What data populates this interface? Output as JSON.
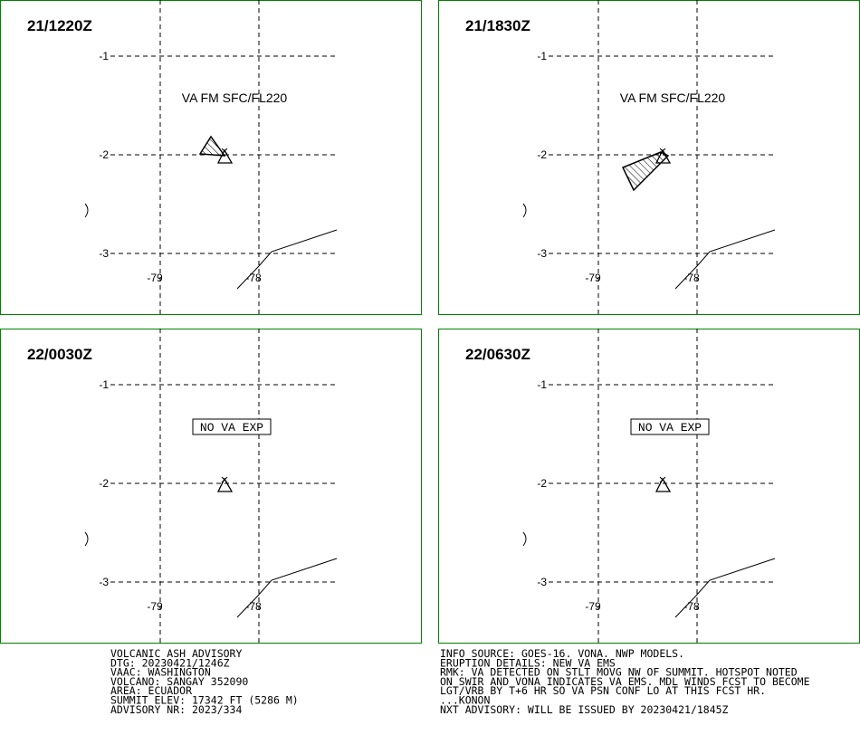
{
  "panels": [
    {
      "time": "21/1220Z",
      "annotation": "VA FM SFC/FL220"
    },
    {
      "time": "21/1830Z",
      "annotation": "VA FM SFC/FL220"
    },
    {
      "time": "22/0030Z",
      "annotation": "NO VA EXP"
    },
    {
      "time": "22/0630Z",
      "annotation": "NO VA EXP"
    }
  ],
  "lat_labels": [
    "-1",
    "-2",
    "-3"
  ],
  "lon_labels": [
    "-79",
    "-78"
  ],
  "footer": {
    "left": [
      "VOLCANIC ASH ADVISORY",
      "DTG: 20230421/1246Z",
      "VAAC: WASHINGTON",
      "VOLCANO: SANGAY 352090",
      "AREA: ECUADOR",
      "SUMMIT ELEV: 17342 FT (5286 M)",
      "ADVISORY NR: 2023/334"
    ],
    "right": [
      "INFO SOURCE: GOES-16. VONA. NWP MODELS.",
      "ERUPTION DETAILS: NEW VA EMS",
      "RMK: VA DETECTED ON STLT MOVG NW OF SUMMIT. HOTSPOT NOTED",
      "ON SWIR AND VONA INDICATES VA EMS. MDL WINDS FCST TO BECOME",
      "LGT/VRB BY T+6 HR SO VA PSN CONF LO AT THIS FCST HR.",
      "...KONON",
      "NXT ADVISORY: WILL BE ISSUED BY 20230421/1845Z"
    ]
  }
}
